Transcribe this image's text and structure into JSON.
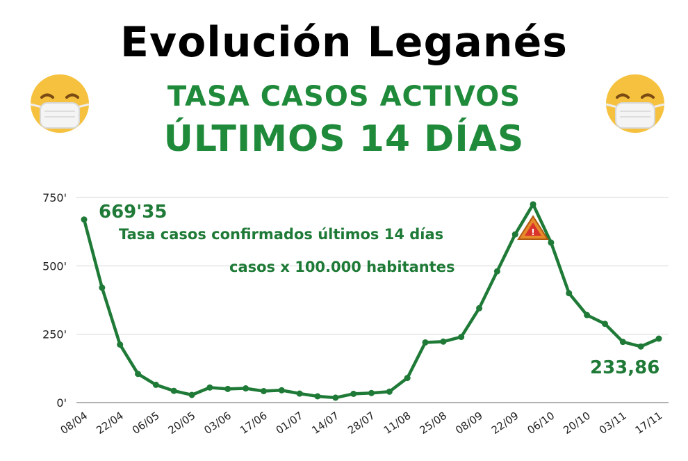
{
  "header": {
    "title": "Evolución Leganés",
    "subtitle_line1": "TASA CASOS ACTIVOS",
    "subtitle_line2": "ÚLTIMOS 14 DÍAS"
  },
  "icons": {
    "left": "mask-face-emoji-icon",
    "right": "mask-face-emoji-icon",
    "warning": "warning-triangle-icon"
  },
  "colors": {
    "line": "#1e7a36",
    "heading_green": "#1e8a3a",
    "grid": "#dddddd",
    "emoji_yellow": "#f5c13f",
    "warning_orange": "#e8892a"
  },
  "chart_data": {
    "type": "line",
    "title": "",
    "xlabel": "",
    "ylabel": "",
    "ylim": [
      0,
      750
    ],
    "yticks": [
      {
        "value": 0,
        "label": "0'"
      },
      {
        "value": 250,
        "label": "250'"
      },
      {
        "value": 500,
        "label": "500'"
      },
      {
        "value": 750,
        "label": "750'"
      }
    ],
    "grid": true,
    "x_tick_labels": [
      "08/04",
      "22/04",
      "06/05",
      "20/05",
      "03/06",
      "17/06",
      "01/07",
      "14/07",
      "28/07",
      "11/08",
      "25/08",
      "08/09",
      "22/09",
      "06/10",
      "20/10",
      "03/11",
      "17/11"
    ],
    "values": [
      669.35,
      420,
      212,
      105,
      65,
      43,
      28,
      55,
      50,
      52,
      42,
      45,
      33,
      23,
      18,
      32,
      35,
      40,
      90,
      220,
      223,
      240,
      345,
      480,
      615,
      725,
      585,
      400,
      320,
      288,
      222,
      205,
      233.86
    ],
    "annotations": [
      {
        "text": "669'35"
      },
      {
        "text": "Tasa casos confirmados últimos 14 días"
      },
      {
        "text": "casos x 100.000 habitantes"
      },
      {
        "text": "233,86"
      }
    ]
  }
}
